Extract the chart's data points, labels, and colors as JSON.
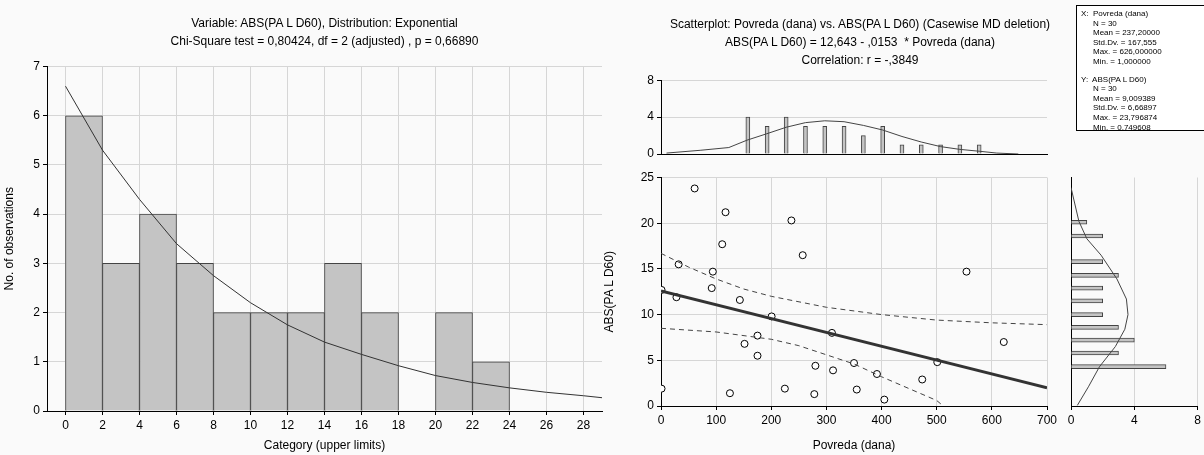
{
  "chart_data": [
    {
      "type": "histogram",
      "title": "Variable: ABS(PA L D60), Distribution: Exponential",
      "subtitle": "Chi-Square test = 0,80424, df = 2 (adjusted) , p = 0,66890",
      "xlabel": "Category (upper limits)",
      "ylabel": "No. of observations",
      "bins": [
        0,
        2,
        4,
        6,
        8,
        10,
        12,
        14,
        16,
        18,
        20,
        22,
        24
      ],
      "values": [
        6,
        3,
        4,
        3,
        2,
        2,
        2,
        3,
        2,
        0,
        2,
        1
      ],
      "color": "#c4c4c4",
      "xlim": [
        -1,
        29
      ],
      "xticks": [
        0,
        2,
        4,
        6,
        8,
        10,
        12,
        14,
        16,
        18,
        20,
        22,
        24,
        26,
        28
      ],
      "ylim": [
        0,
        7
      ],
      "yticks": [
        0,
        1,
        2,
        3,
        4,
        5,
        6,
        7
      ],
      "grid": true,
      "series": [
        {
          "type": "line",
          "color": "#333333",
          "x": [
            0,
            2,
            4,
            6,
            8,
            10,
            12,
            14,
            16,
            18,
            20,
            22,
            24,
            26,
            28,
            29
          ],
          "values": [
            6.6,
            5.3,
            4.3,
            3.4,
            2.75,
            2.2,
            1.75,
            1.4,
            1.15,
            0.92,
            0.72,
            0.58,
            0.47,
            0.38,
            0.31,
            0.27
          ]
        }
      ]
    },
    {
      "type": "bar",
      "title": "Scatterplot: Povreda (dana) vs. ABS(PA L D60) (Casewise MD deletion)",
      "subtitle": "ABS(PA L D60) = 12,643 - ,0153  * Povreda (dana)",
      "annotations": [
        "Correlation: r = -,3849"
      ],
      "x": [
        157.5,
        192.5,
        227,
        262,
        297,
        332,
        367,
        402,
        437,
        472,
        507,
        542,
        577
      ],
      "values": [
        4,
        3,
        4,
        3,
        3,
        3,
        2,
        3,
        1,
        1,
        1,
        1,
        1
      ],
      "color": "#c4c4c4",
      "xlim": [
        0,
        700
      ],
      "xticks": [
        0,
        100,
        200,
        300,
        400,
        500,
        600,
        700
      ],
      "ylim": [
        0,
        8
      ],
      "yticks": [
        0,
        4,
        8
      ],
      "grid": "y",
      "tick_labels": "y",
      "series": [
        {
          "type": "line",
          "color": "#444444",
          "x": [
            10,
            71,
            123,
            156,
            192,
            227,
            262,
            297,
            332,
            367,
            402,
            437,
            472,
            507,
            542,
            577,
            609,
            648
          ],
          "values": [
            0.1,
            0.4,
            0.7,
            1.5,
            2.2,
            2.9,
            3.4,
            3.6,
            3.5,
            3.1,
            2.6,
            1.9,
            1.3,
            0.8,
            0.5,
            0.3,
            0.1,
            0
          ]
        }
      ]
    },
    {
      "type": "scatter",
      "xlabel": "Povreda (dana)",
      "ylabel": "ABS(PA L D60)",
      "xlim": [
        0,
        700
      ],
      "xticks": [
        0,
        100,
        200,
        300,
        400,
        500,
        600,
        700
      ],
      "ylim": [
        0,
        25
      ],
      "yticks": [
        0,
        5,
        10,
        15,
        20,
        25
      ],
      "grid": true,
      "series": [
        {
          "type": "scatter",
          "marker": "circle",
          "color": "#000000",
          "x": [
            61,
            117,
            236.5,
            111,
            257,
            32,
            94,
            554,
            92,
            1,
            28,
            143,
            200.6,
            310,
            175,
            621.6,
            151.5,
            175,
            501,
            350,
            280,
            312,
            391.6,
            473.7,
            1,
            224.6,
            355,
            125,
            278,
            405
          ],
          "values": [
            23.8,
            21.2,
            20.3,
            17.7,
            16.5,
            15.5,
            14.7,
            14.7,
            12.9,
            12.7,
            11.9,
            11.6,
            9.8,
            8.0,
            7.7,
            7.0,
            6.8,
            5.5,
            4.8,
            4.7,
            4.4,
            3.9,
            3.5,
            2.9,
            1.9,
            1.9,
            1.8,
            1.4,
            1.3,
            0.7
          ]
        },
        {
          "type": "line",
          "line_style": "solid",
          "color": "#333333",
          "x": [
            0,
            700
          ],
          "values": [
            12.6,
            2.0
          ]
        },
        {
          "type": "line",
          "line_style": "dashed",
          "color": "#444444",
          "x": [
            0,
            50,
            100,
            150,
            200,
            300,
            400,
            500,
            600,
            700
          ],
          "values": [
            16.7,
            15.2,
            13.9,
            12.8,
            12.0,
            10.8,
            10.0,
            9.4,
            9.1,
            8.9
          ]
        },
        {
          "type": "line",
          "line_style": "dashed",
          "color": "#444444",
          "x": [
            0,
            100,
            200,
            250,
            300,
            350,
            400,
            450,
            500,
            512
          ],
          "values": [
            8.5,
            8.1,
            7.3,
            6.6,
            5.6,
            4.6,
            3.2,
            1.9,
            0.6,
            0
          ]
        }
      ]
    },
    {
      "type": "bar",
      "orientation": "horizontal",
      "x": [
        20.1,
        18.6,
        15.8,
        14.3,
        12.9,
        11.5,
        10.0,
        8.6,
        7.2,
        5.8,
        4.3
      ],
      "values": [
        1,
        2,
        2,
        3,
        2,
        2,
        2,
        3,
        4,
        3,
        6
      ],
      "color": "#c4c4c4",
      "xlim": [
        0,
        8
      ],
      "xticks": [
        0,
        4,
        8
      ],
      "ylim": [
        0,
        25
      ],
      "yticks": [
        0,
        5,
        10,
        15,
        20,
        25
      ],
      "grid": "x",
      "tick_labels": "x",
      "series": [
        {
          "type": "line",
          "color": "#444444",
          "x": [
            23.9,
            20.2,
            18.3,
            16.5,
            13.9,
            11.7,
            10.0,
            8.4,
            6.5,
            4.3,
            2.1,
            0.07
          ],
          "values": [
            0,
            0.5,
            1,
            1.9,
            2.9,
            3.5,
            3.6,
            3.4,
            2.8,
            1.8,
            1.1,
            0.4
          ]
        }
      ]
    },
    {
      "type": "other",
      "annotations": [
        "X:  Povreda (dana)",
        "N = 30",
        "Mean = 237,20000",
        "Std.Dv. = 167,555",
        "Max. = 626,000000",
        "Min. = 1,000000",
        "Y:  ABS(PA L D60)",
        "N = 30",
        "Mean = 9,009389",
        "Std.Dv. = 6,66897",
        "Max. = 23,796874",
        "Min. = 0,749608"
      ]
    }
  ]
}
